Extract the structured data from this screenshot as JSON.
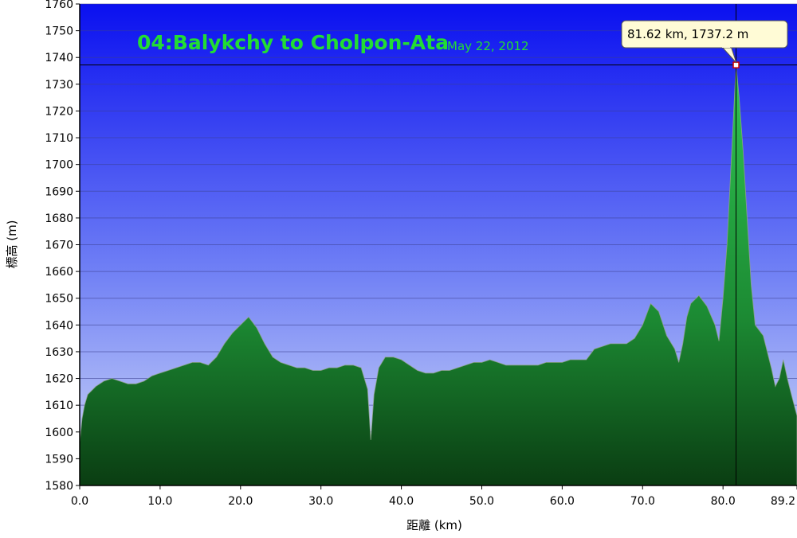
{
  "chart_data": {
    "type": "area",
    "title": "04:Balykchy to Cholpon-Ata",
    "subtitle": "May 22, 2012",
    "xlabel": "距離 (km)",
    "ylabel": "標高 (m)",
    "xlim": [
      0,
      89.2
    ],
    "ylim": [
      1580,
      1760
    ],
    "x_ticks": [
      0,
      10,
      20,
      30,
      40,
      50,
      60,
      70,
      80,
      89.2
    ],
    "x_tick_labels": [
      "0.0",
      "10.0",
      "20.0",
      "30.0",
      "40.0",
      "50.0",
      "60.0",
      "70.0",
      "80.0",
      "89.2"
    ],
    "y_ticks": [
      1580,
      1590,
      1600,
      1610,
      1620,
      1630,
      1640,
      1650,
      1660,
      1670,
      1680,
      1690,
      1700,
      1710,
      1720,
      1730,
      1740,
      1750,
      1760
    ],
    "grid": true,
    "series": [
      {
        "x": [
          0,
          0.3,
          0.6,
          1,
          2,
          3,
          4,
          5,
          6,
          7,
          8,
          9,
          10,
          11,
          12,
          13,
          14,
          15,
          16,
          17,
          18,
          19,
          20,
          21,
          22,
          23,
          24,
          25,
          26,
          27,
          28,
          29,
          30,
          31,
          32,
          33,
          34,
          35,
          35.8,
          36.2,
          36.6,
          37.2,
          38,
          39,
          40,
          41,
          42,
          43,
          44,
          45,
          46,
          47,
          48,
          49,
          50,
          51,
          52,
          53,
          54,
          55,
          56,
          57,
          58,
          59,
          60,
          61,
          62,
          63,
          64,
          65,
          66,
          67,
          68,
          69,
          70,
          71,
          72,
          73,
          74,
          74.5,
          75,
          75.5,
          76,
          77,
          78,
          79,
          79.5,
          80,
          80.5,
          81,
          81.62,
          82,
          82.5,
          83,
          83.5,
          84,
          85,
          86,
          86.5,
          87,
          87.5,
          88,
          88.5,
          89.2
        ],
        "y": [
          1596,
          1605,
          1610,
          1614,
          1617,
          1619,
          1620,
          1619,
          1618,
          1618,
          1619,
          1621,
          1622,
          1623,
          1624,
          1625,
          1626,
          1626,
          1625,
          1628,
          1633,
          1637,
          1640,
          1643,
          1639,
          1633,
          1628,
          1626,
          1625,
          1624,
          1624,
          1623,
          1623,
          1624,
          1624,
          1625,
          1625,
          1624,
          1616,
          1597,
          1614,
          1624,
          1628,
          1628,
          1627,
          1625,
          1623,
          1622,
          1622,
          1623,
          1623,
          1624,
          1625,
          1626,
          1626,
          1627,
          1626,
          1625,
          1625,
          1625,
          1625,
          1625,
          1626,
          1626,
          1626,
          1627,
          1627,
          1627,
          1631,
          1632,
          1633,
          1633,
          1633,
          1635,
          1640,
          1648,
          1645,
          1636,
          1631,
          1626,
          1633,
          1643,
          1648,
          1651,
          1647,
          1640,
          1634,
          1650,
          1670,
          1700,
          1737.2,
          1725,
          1705,
          1680,
          1655,
          1640,
          1636,
          1624,
          1617,
          1620,
          1627,
          1620,
          1614,
          1606
        ]
      }
    ],
    "marker": {
      "x": 81.62,
      "y": 1737.2
    },
    "tooltip": "81.62 km, 1737.2 m",
    "colors": {
      "bg_top": "#0a10f0",
      "bg_bottom": "#ccd6f5",
      "fill_light": "#2ec24e",
      "fill_dark": "#0a4414",
      "title": "#22dd33"
    }
  }
}
